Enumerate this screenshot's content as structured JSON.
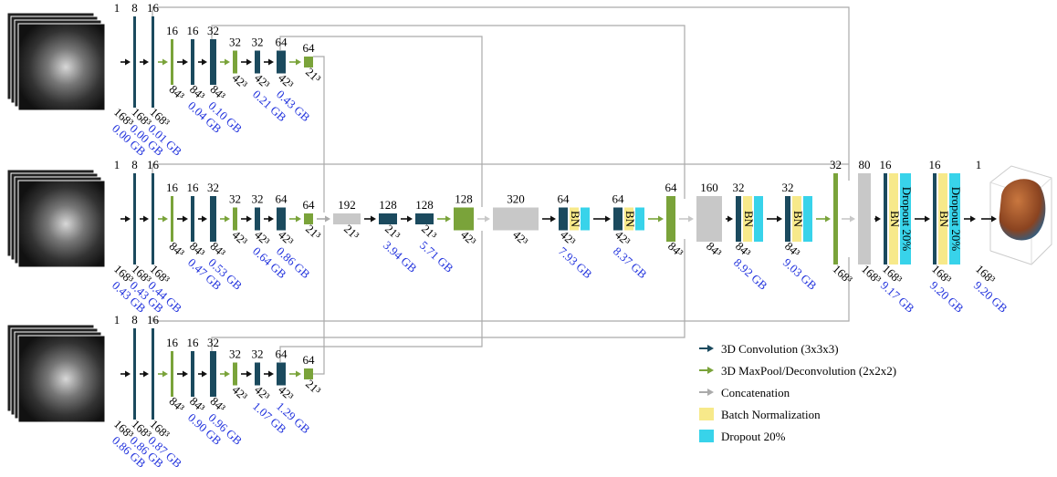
{
  "encoder_branches": [
    {
      "layers": [
        {
          "channels": "1",
          "size": "168³",
          "memory": "0.00 GB"
        },
        {
          "channels": "8",
          "size": "168³",
          "color": "#1b4a5e",
          "memory": "0.00 GB"
        },
        {
          "channels": "16",
          "size": "168³",
          "color": "#1b4a5e",
          "memory": "0.01 GB"
        },
        {
          "channels": "16",
          "size": "84³",
          "color": "#7aa33a"
        },
        {
          "channels": "16",
          "size": "84³",
          "color": "#1b4a5e",
          "memory": "0.04 GB"
        },
        {
          "channels": "32",
          "size": "84³",
          "color": "#1b4a5e",
          "memory": "0.10 GB"
        },
        {
          "channels": "32",
          "size": "42³",
          "color": "#7aa33a"
        },
        {
          "channels": "32",
          "size": "42³",
          "color": "#1b4a5e",
          "memory": "0.21 GB"
        },
        {
          "channels": "64",
          "size": "42³",
          "color": "#1b4a5e",
          "memory": "0.43 GB"
        },
        {
          "channels": "64",
          "size": "21³",
          "color": "#7aa33a"
        }
      ]
    },
    {
      "layers": [
        {
          "channels": "1",
          "size": "168³",
          "memory": "0.43 GB"
        },
        {
          "channels": "8",
          "size": "168³",
          "color": "#1b4a5e",
          "memory": "0.43 GB"
        },
        {
          "channels": "16",
          "size": "168³",
          "color": "#1b4a5e",
          "memory": "0.44 GB"
        },
        {
          "channels": "16",
          "size": "84³",
          "color": "#7aa33a"
        },
        {
          "channels": "16",
          "size": "84³",
          "color": "#1b4a5e",
          "memory": "0.47 GB"
        },
        {
          "channels": "32",
          "size": "84³",
          "color": "#1b4a5e",
          "memory": "0.53 GB"
        },
        {
          "channels": "32",
          "size": "42³",
          "color": "#7aa33a"
        },
        {
          "channels": "32",
          "size": "42³",
          "color": "#1b4a5e",
          "memory": "0.64 GB"
        },
        {
          "channels": "64",
          "size": "42³",
          "color": "#1b4a5e",
          "memory": "0.86 GB"
        },
        {
          "channels": "64",
          "size": "21³",
          "color": "#7aa33a"
        }
      ]
    },
    {
      "layers": [
        {
          "channels": "1",
          "size": "168³",
          "memory": "0.86 GB"
        },
        {
          "channels": "8",
          "size": "168³",
          "color": "#1b4a5e",
          "memory": "0.86 GB"
        },
        {
          "channels": "16",
          "size": "168³",
          "color": "#1b4a5e",
          "memory": "0.87 GB"
        },
        {
          "channels": "16",
          "size": "84³",
          "color": "#7aa33a"
        },
        {
          "channels": "16",
          "size": "84³",
          "color": "#1b4a5e",
          "memory": "0.90 GB"
        },
        {
          "channels": "32",
          "size": "84³",
          "color": "#1b4a5e",
          "memory": "0.96 GB"
        },
        {
          "channels": "32",
          "size": "42³",
          "color": "#7aa33a"
        },
        {
          "channels": "32",
          "size": "42³",
          "color": "#1b4a5e",
          "memory": "1.07 GB"
        },
        {
          "channels": "64",
          "size": "42³",
          "color": "#1b4a5e",
          "memory": "1.29 GB"
        },
        {
          "channels": "64",
          "size": "21³",
          "color": "#7aa33a"
        }
      ]
    }
  ],
  "decoder": {
    "layers": [
      {
        "channels": "192",
        "size": "21³",
        "color": "#c8c8c8"
      },
      {
        "channels": "128",
        "size": "21³",
        "color": "#1b4a5e",
        "memory": "3.94 GB"
      },
      {
        "channels": "128",
        "size": "21³",
        "color": "#1b4a5e",
        "memory": "5.71 GB"
      },
      {
        "channels": "128",
        "size": "42³",
        "color": "#7aa33a"
      },
      {
        "channels": "320",
        "size": "42³",
        "color": "#c8c8c8"
      },
      {
        "channels": "64",
        "size": "42³",
        "color": "#1b4a5e",
        "bn": "BN",
        "dropout": true,
        "memory": "7.93 GB"
      },
      {
        "channels": "64",
        "size": "42³",
        "color": "#1b4a5e",
        "bn": "BN",
        "dropout": true,
        "memory": "8.37 GB"
      },
      {
        "channels": "64",
        "size": "84³",
        "color": "#7aa33a"
      },
      {
        "channels": "160",
        "size": "84³",
        "color": "#c8c8c8"
      },
      {
        "channels": "32",
        "size": "84³",
        "color": "#1b4a5e",
        "bn": "BN",
        "dropout": true,
        "memory": "8.92 GB"
      },
      {
        "channels": "32",
        "size": "84³",
        "color": "#1b4a5e",
        "bn": "BN",
        "dropout": true,
        "memory": "9.03 GB"
      },
      {
        "channels": "32",
        "size": "168³",
        "color": "#7aa33a"
      },
      {
        "channels": "80",
        "size": "168³",
        "color": "#c8c8c8"
      },
      {
        "channels": "16",
        "size": "168³",
        "color": "#1b4a5e",
        "bn": "BN",
        "dropout": true,
        "dropout_label": "Dropout 20%",
        "memory": "9.17 GB"
      },
      {
        "channels": "16",
        "size": "168³",
        "color": "#1b4a5e",
        "bn": "BN",
        "dropout": true,
        "dropout_label": "Dropout 20%",
        "memory": "9.20 GB"
      },
      {
        "channels": "1",
        "size": "168³",
        "memory": "9.20 GB"
      }
    ]
  },
  "legend": [
    {
      "label": "3D Convolution (3x3x3)",
      "color": "#1b4a5e",
      "kind": "arrow"
    },
    {
      "label": "3D MaxPool/Deconvolution (2x2x2)",
      "color": "#7aa33a",
      "kind": "arrow"
    },
    {
      "label": "Concatenation",
      "color": "#aaaaaa",
      "kind": "arrow"
    },
    {
      "label": "Batch Normalization",
      "color": "#f7e98a",
      "kind": "swatch"
    },
    {
      "label": "Dropout 20%",
      "color": "#38d3ea",
      "kind": "swatch"
    }
  ]
}
